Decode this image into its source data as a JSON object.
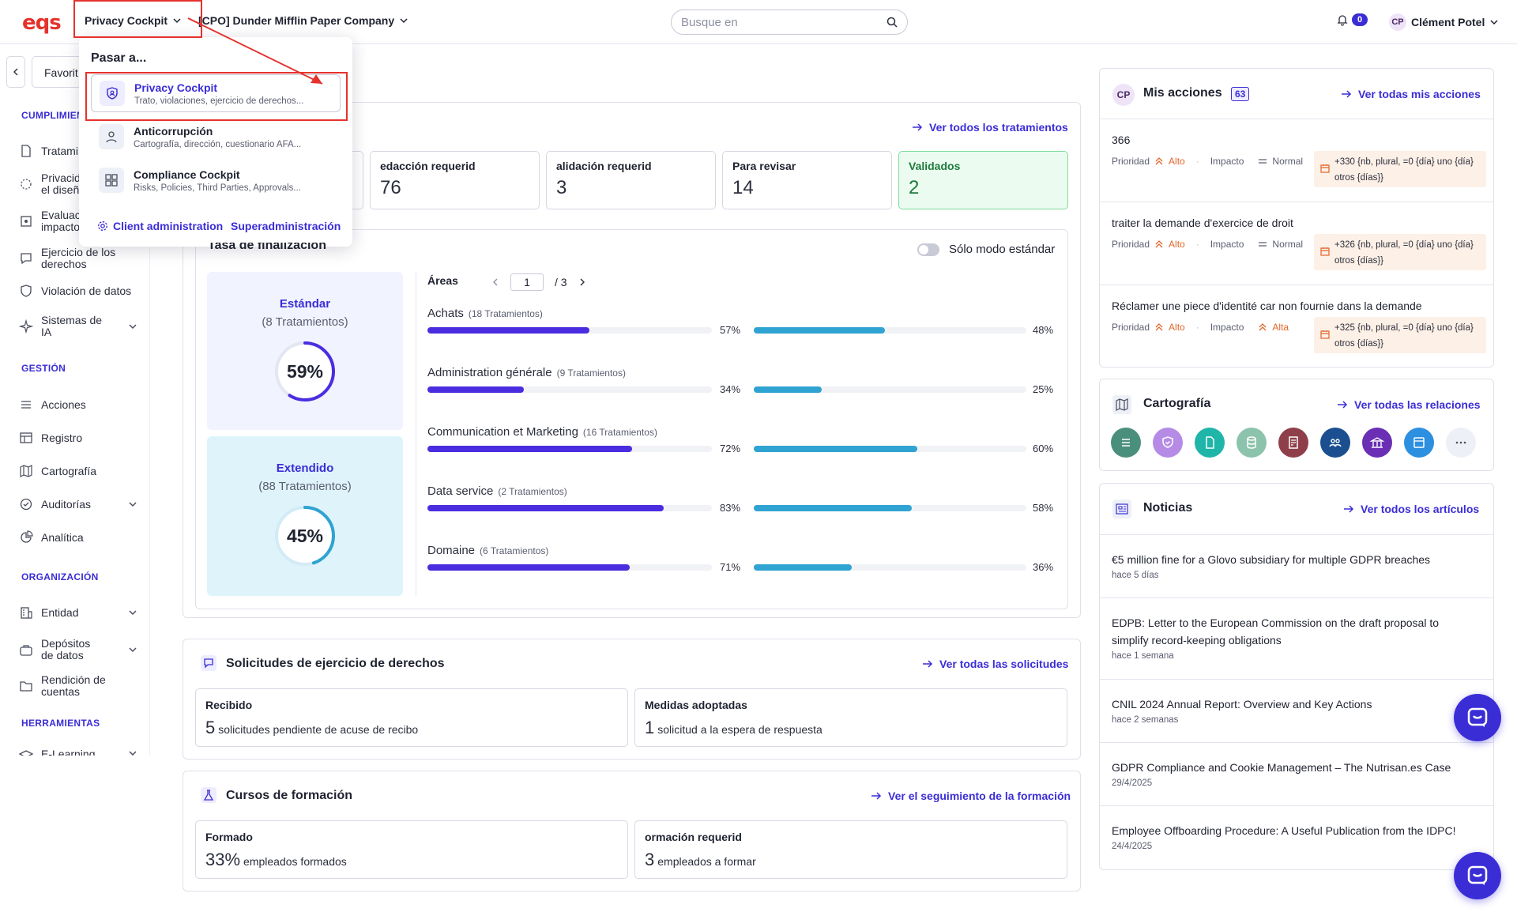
{
  "topbar": {
    "logo": "eqs",
    "app_selector": "Privacy Cockpit",
    "company_selector": "[CPO] Dunder Mifflin Paper Company",
    "search_placeholder": "Busque en",
    "notifications_count": "0",
    "user_initials": "CP",
    "user_name": "Clément Potel"
  },
  "dropdown": {
    "title": "Pasar a...",
    "items": [
      {
        "title": "Privacy Cockpit",
        "desc": "Trato, violaciones, ejercicio de derechos...",
        "icon": "shield-person-icon"
      },
      {
        "title": "Anticorrupción",
        "desc": "Cartografía, dirección, cuestionario AFA...",
        "icon": "person-icon"
      },
      {
        "title": "Compliance Cockpit",
        "desc": "Risks, Policies, Third Parties, Approvals...",
        "icon": "grid-icon"
      }
    ],
    "client_admin": "Client administration",
    "superadmin": "Superadministración"
  },
  "sidebar": {
    "favorites": "Favorit",
    "sec_cumplimiento": "CUMPLIMIEN",
    "sec_gestion": "GESTIÓN",
    "sec_organizacion": "ORGANIZACIÓN",
    "sec_herramientas": "HERRAMIENTAS",
    "items": {
      "tratamientos": "Tratami",
      "privacidad": "Privacida\nel diseñ",
      "evaluacion": "Evaluac\nimpacto",
      "ejercicio": "Ejercicio de los derechos",
      "violacion": "Violación de datos",
      "sistemas": "Sistemas de IA",
      "acciones": "Acciones",
      "registro": "Registro",
      "cartografia": "Cartografía",
      "auditorias": "Auditorías",
      "analitica": "Analítica",
      "entidad": "Entidad",
      "depositos": "Depósitos de datos",
      "rendicion": "Rendición de cuentas",
      "elearning": "E-Learning"
    }
  },
  "treatments": {
    "view_all": "Ver todos los tratamientos",
    "stats": [
      {
        "label": "edacción requerid",
        "value": "76"
      },
      {
        "label": "alidación requerid",
        "value": "3"
      },
      {
        "label": "Para revisar",
        "value": "14"
      },
      {
        "label": "Validados",
        "value": "2"
      }
    ]
  },
  "completion": {
    "title": "Tasa de finalización",
    "toggle_label": "Sólo modo estándar",
    "standard": {
      "title": "Estándar",
      "subtitle": "(8 Tratamientos)",
      "percent": "59%",
      "value": 59
    },
    "extended": {
      "title": "Extendido",
      "subtitle": "(88 Tratamientos)",
      "percent": "45%",
      "value": 45
    },
    "areas_label": "Áreas",
    "page": "1",
    "page_total": "/ 3",
    "areas": [
      {
        "name": "Achats",
        "count": "(18 Tratamientos)",
        "a": 57,
        "a_label": "57%",
        "b": 48,
        "b_label": "48%"
      },
      {
        "name": "Administration générale",
        "count": "(9 Tratamientos)",
        "a": 34,
        "a_label": "34%",
        "b": 25,
        "b_label": "25%"
      },
      {
        "name": "Communication et Marketing",
        "count": "(16 Tratamientos)",
        "a": 72,
        "a_label": "72%",
        "b": 60,
        "b_label": "60%"
      },
      {
        "name": "Data service",
        "count": "(2 Tratamientos)",
        "a": 83,
        "a_label": "83%",
        "b": 58,
        "b_label": "58%"
      },
      {
        "name": "Domaine",
        "count": "(6 Tratamientos)",
        "a": 71,
        "a_label": "71%",
        "b": 36,
        "b_label": "36%"
      }
    ]
  },
  "requests": {
    "title": "Solicitudes de ejercicio de derechos",
    "view_all": "Ver todas las solicitudes",
    "received_label": "Recibido",
    "received_value": "5",
    "received_text": "solicitudes pendiente de acuse de recibo",
    "measures_label": "Medidas adoptadas",
    "measures_value": "1",
    "measures_text": "solicitud a la espera de respuesta"
  },
  "training": {
    "title": "Cursos de formación",
    "view_all": "Ver el seguimiento de la formación",
    "trained_label": "Formado",
    "trained_value": "33%",
    "trained_text": "empleados formados",
    "required_label": "ormación requerid",
    "required_value": "3",
    "required_text": "empleados a formar"
  },
  "actions": {
    "initials": "CP",
    "title": "Mis acciones",
    "count": "63",
    "view_all": "Ver todas mis acciones",
    "priority_label": "Prioridad",
    "impact_label": "Impacto",
    "items": [
      {
        "title": "366",
        "priority": "Alto",
        "impact": "Normal",
        "deadline": "+330 {nb, plural, =0 {día} uno {día} otros {días}}"
      },
      {
        "title": "traiter la demande d'exercice de droit",
        "priority": "Alto",
        "impact": "Normal",
        "deadline": "+326 {nb, plural, =0 {día} uno {día} otros {días}}"
      },
      {
        "title": "Réclamer une piece d'identité car non fournie dans la demande",
        "priority": "Alto",
        "impact": "Alta",
        "deadline": "+325 {nb, plural, =0 {día} uno {día} otros {días}}"
      }
    ]
  },
  "cartography": {
    "title": "Cartografía",
    "view_all": "Ver todas las relaciones",
    "icons": [
      {
        "name": "list-icon",
        "color": "#4a8f7b"
      },
      {
        "name": "shield-check-icon",
        "color": "#b58be6"
      },
      {
        "name": "document-icon",
        "color": "#1fb5a8"
      },
      {
        "name": "database-icon",
        "color": "#8cc3ad"
      },
      {
        "name": "report-icon",
        "color": "#8f3f4a"
      },
      {
        "name": "people-icon",
        "color": "#1b4f8f"
      },
      {
        "name": "institution-icon",
        "color": "#6a2fb5"
      },
      {
        "name": "window-icon",
        "color": "#2d8fe0"
      },
      {
        "name": "more-icon",
        "color": "#eef0f7"
      }
    ]
  },
  "news": {
    "title": "Noticias",
    "view_all": "Ver todos los artículos",
    "items": [
      {
        "title": "€5 million fine for a Glovo subsidiary for multiple GDPR breaches",
        "date": "hace 5 días"
      },
      {
        "title": "EDPB: Letter to the European Commission on the draft proposal to simplify record-keeping obligations",
        "date": "hace 1 semana"
      },
      {
        "title": "CNIL 2024 Annual Report: Overview and Key Actions",
        "date": "hace 2 semanas"
      },
      {
        "title": "GDPR Compliance and Cookie Management – The Nutrisan.es Case",
        "date": "29/4/2025"
      },
      {
        "title": "Employee Offboarding Procedure: A Useful Publication from the IDPC!",
        "date": "24/4/2025"
      }
    ]
  },
  "colors": {
    "accent": "#3b2dd6",
    "bar_primary": "#4b2de0",
    "bar_secondary": "#2fa3d1",
    "annotation": "#e5322d"
  }
}
